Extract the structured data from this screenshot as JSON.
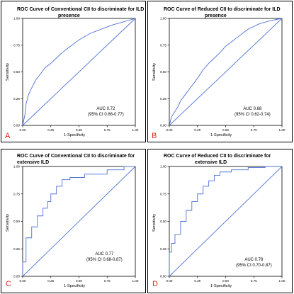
{
  "chart_data": [
    {
      "type": "line",
      "panel_letter": "A",
      "title_lines": [
        "ROC Curve of Conventional CII to discriminate for ILD",
        "presence"
      ],
      "xlabel": "1-Specificity",
      "ylabel": "Sensitivity",
      "xticks": [
        "0.00",
        "0.25",
        "0.50",
        "0.75",
        "1.00"
      ],
      "yticks": [
        "0.00",
        "0.25",
        "0.50",
        "0.75",
        "1.00"
      ],
      "xlim": [
        0,
        1
      ],
      "ylim": [
        0,
        1
      ],
      "auc_lines": [
        "AUC 0.72",
        "(95% CI 0.66-0.77)"
      ],
      "series": [
        {
          "x": [
            0,
            0.01,
            0.02,
            0.03,
            0.05,
            0.07,
            0.1,
            0.12,
            0.15,
            0.2,
            0.25,
            0.3,
            0.35,
            0.4,
            0.45,
            0.5,
            0.55,
            0.6,
            0.7,
            0.8,
            0.9,
            1.0
          ],
          "y": [
            0,
            0.05,
            0.1,
            0.2,
            0.28,
            0.33,
            0.39,
            0.43,
            0.47,
            0.54,
            0.58,
            0.63,
            0.68,
            0.72,
            0.76,
            0.8,
            0.83,
            0.86,
            0.9,
            0.94,
            0.97,
            1.0
          ]
        },
        {
          "x": [
            0,
            1
          ],
          "y": [
            0,
            1
          ]
        }
      ]
    },
    {
      "type": "line",
      "panel_letter": "B",
      "title_lines": [
        "ROC Curve of Reduced CII to discriminate for ILD",
        "presence"
      ],
      "xlabel": "1-Specificity",
      "ylabel": "Sensitivity",
      "xticks": [
        "0.00",
        "0.25",
        "0.50",
        "0.75",
        "1.00"
      ],
      "yticks": [
        "0.00",
        "0.25",
        "0.50",
        "0.75",
        "1.00"
      ],
      "xlim": [
        0,
        1
      ],
      "ylim": [
        0,
        1
      ],
      "auc_lines": [
        "AUC 0.68",
        "(95% CI 0.62-0.74)"
      ],
      "series": [
        {
          "x": [
            0,
            0.01,
            0.02,
            0.05,
            0.08,
            0.1,
            0.15,
            0.2,
            0.25,
            0.3,
            0.35,
            0.4,
            0.45,
            0.5,
            0.55,
            0.6,
            0.65,
            0.7,
            0.8,
            0.9,
            1.0
          ],
          "y": [
            0,
            0.04,
            0.08,
            0.13,
            0.18,
            0.23,
            0.3,
            0.37,
            0.44,
            0.52,
            0.58,
            0.63,
            0.68,
            0.74,
            0.78,
            0.82,
            0.86,
            0.9,
            0.95,
            0.98,
            1.0
          ]
        },
        {
          "x": [
            0,
            1
          ],
          "y": [
            0,
            1
          ]
        }
      ]
    },
    {
      "type": "line",
      "panel_letter": "C",
      "title_lines": [
        "ROC Curve of Conventional CII to discriminate for",
        "extensive ILD"
      ],
      "xlabel": "1-Specificity",
      "ylabel": "Sensitivity",
      "xticks": [
        "0.00",
        "0.25",
        "0.50",
        "0.75",
        "1.00"
      ],
      "yticks": [
        "0.00",
        "0.25",
        "0.50",
        "0.75",
        "1.00"
      ],
      "xlim": [
        0,
        1
      ],
      "ylim": [
        0,
        1
      ],
      "auc_lines": [
        "AUC 0.77",
        "(95% CI 0.68-0.87)"
      ],
      "series": [
        {
          "x": [
            0,
            0,
            0.03,
            0.03,
            0.08,
            0.08,
            0.13,
            0.13,
            0.18,
            0.18,
            0.22,
            0.22,
            0.25,
            0.25,
            0.3,
            0.3,
            0.35,
            0.35,
            0.42,
            0.42,
            0.55,
            0.55,
            0.75,
            0.75,
            0.9,
            0.9,
            1.0
          ],
          "y": [
            0,
            0.13,
            0.13,
            0.35,
            0.35,
            0.45,
            0.45,
            0.55,
            0.55,
            0.62,
            0.62,
            0.68,
            0.68,
            0.75,
            0.75,
            0.82,
            0.82,
            0.88,
            0.88,
            0.9,
            0.9,
            0.93,
            0.93,
            0.97,
            0.97,
            1.0,
            1.0
          ]
        },
        {
          "x": [
            0,
            1
          ],
          "y": [
            0,
            1
          ]
        }
      ]
    },
    {
      "type": "line",
      "panel_letter": "D",
      "title_lines": [
        "ROC Curve of Reduced CII to discriminate for",
        "extensive ILD"
      ],
      "xlabel": "1-Specificity",
      "ylabel": "Sensitivity",
      "xticks": [
        "0.00",
        "0.25",
        "0.50",
        "0.75",
        "1.00"
      ],
      "yticks": [
        "0.00",
        "0.25",
        "0.50",
        "0.75",
        "1.00"
      ],
      "xlim": [
        0,
        1
      ],
      "ylim": [
        0,
        1
      ],
      "auc_lines": [
        "AUC 0.78",
        "(95% CI 0.70-0.87)"
      ],
      "series": [
        {
          "x": [
            0,
            0,
            0.02,
            0.02,
            0.05,
            0.05,
            0.1,
            0.1,
            0.15,
            0.15,
            0.2,
            0.2,
            0.25,
            0.25,
            0.3,
            0.3,
            0.35,
            0.35,
            0.4,
            0.4,
            0.45,
            0.45,
            0.55,
            0.55,
            0.7,
            0.7,
            0.85,
            0.85,
            1.0
          ],
          "y": [
            0,
            0.22,
            0.22,
            0.3,
            0.3,
            0.38,
            0.38,
            0.5,
            0.5,
            0.6,
            0.6,
            0.68,
            0.68,
            0.75,
            0.75,
            0.82,
            0.82,
            0.87,
            0.87,
            0.92,
            0.92,
            0.95,
            0.95,
            0.97,
            0.97,
            0.99,
            0.99,
            1.0,
            1.0
          ]
        },
        {
          "x": [
            0,
            1
          ],
          "y": [
            0,
            1
          ]
        }
      ]
    }
  ]
}
